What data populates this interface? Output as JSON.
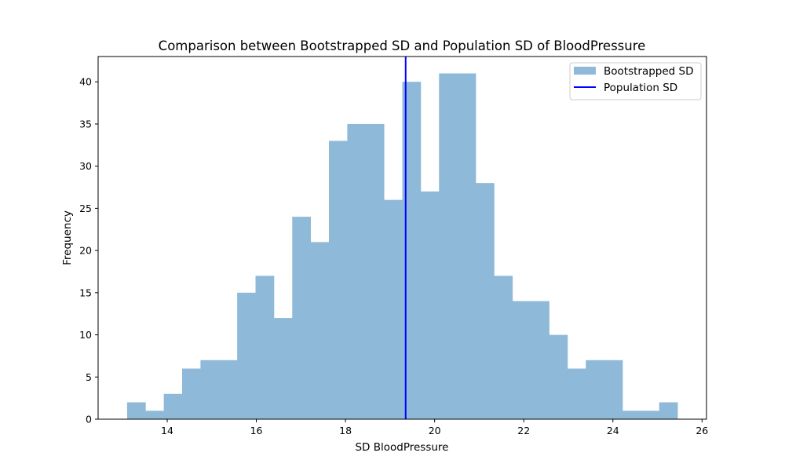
{
  "chart_data": {
    "type": "bar",
    "title": "Comparison between Bootstrapped SD and Population SD of BloodPressure",
    "xlabel": "SD BloodPressure",
    "ylabel": "Frequency",
    "xlim": [
      12.45,
      26.1
    ],
    "ylim": [
      0,
      43
    ],
    "x_ticks": [
      14,
      16,
      18,
      20,
      22,
      24,
      26
    ],
    "y_ticks": [
      0,
      5,
      10,
      15,
      20,
      25,
      30,
      35,
      40
    ],
    "grid": false,
    "legend_position": "top-right",
    "bin_start": 13.1,
    "bin_end": 25.45,
    "counts": [
      2,
      1,
      3,
      6,
      7,
      7,
      15,
      17,
      12,
      24,
      21,
      33,
      35,
      35,
      26,
      40,
      27,
      41,
      41,
      28,
      17,
      14,
      14,
      10,
      6,
      7,
      7,
      1,
      1,
      2
    ],
    "series": [
      {
        "name": "Bootstrapped SD",
        "kind": "histogram",
        "color": "#8fb9d9"
      },
      {
        "name": "Population SD",
        "kind": "vline",
        "x": 19.35,
        "color": "#0000ff"
      }
    ]
  }
}
